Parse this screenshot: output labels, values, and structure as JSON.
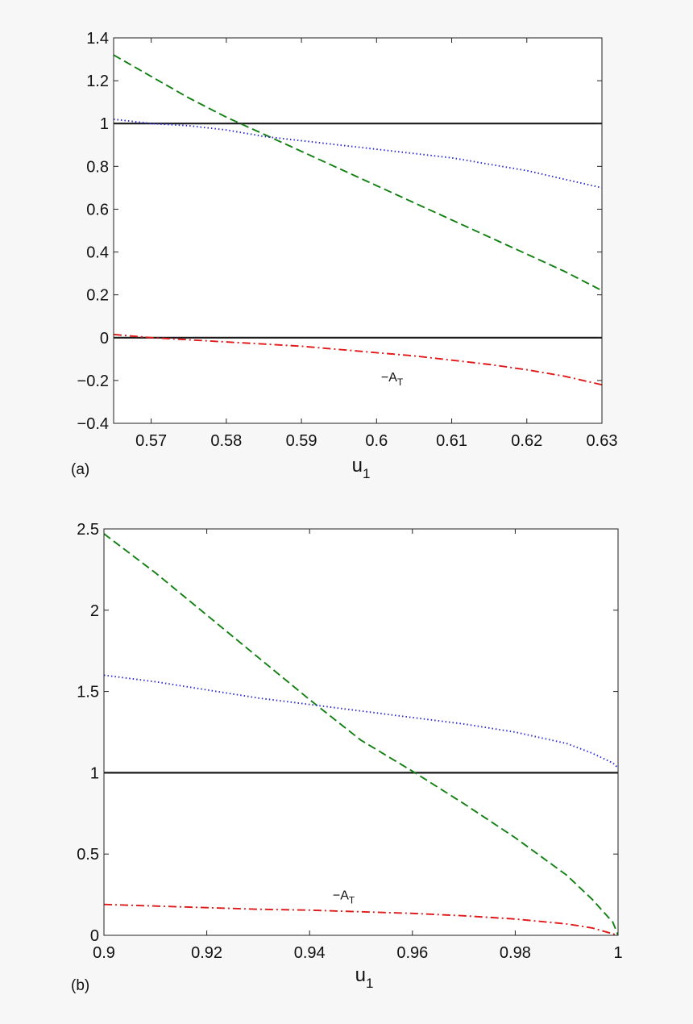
{
  "chart_data": [
    {
      "type": "line",
      "panel_label": "(a)",
      "xlabel": "u",
      "xlabel_sub": "1",
      "ylabel": "",
      "xlim": [
        0.565,
        0.63
      ],
      "ylim": [
        -0.4,
        1.4
      ],
      "xticks": [
        0.57,
        0.58,
        0.59,
        0.6,
        0.61,
        0.62,
        0.63
      ],
      "xtick_labels": [
        "0.57",
        "0.58",
        "0.59",
        "0.6",
        "0.61",
        "0.62",
        "0.63"
      ],
      "yticks": [
        -0.4,
        -0.2,
        0,
        0.2,
        0.4,
        0.6,
        0.8,
        1,
        1.2,
        1.4
      ],
      "ytick_labels": [
        "−0.4",
        "−0.2",
        "0",
        "0.2",
        "0.4",
        "0.6",
        "0.8",
        "1",
        "1.2",
        "1.4"
      ],
      "annotation": {
        "text": "−A",
        "sub": "T",
        "x": 0.6006,
        "y": -0.205
      },
      "series": [
        {
          "style": "solid",
          "color": "#1a1a1a",
          "x": [
            0.565,
            0.63
          ],
          "y": [
            1.0,
            1.0
          ]
        },
        {
          "style": "solid",
          "color": "#1a1a1a",
          "x": [
            0.565,
            0.63
          ],
          "y": [
            0.0,
            0.0
          ]
        },
        {
          "style": "dashed",
          "color": "#118011",
          "x": [
            0.565,
            0.57,
            0.575,
            0.58,
            0.585,
            0.59,
            0.595,
            0.6,
            0.605,
            0.61,
            0.615,
            0.62,
            0.625,
            0.63
          ],
          "y": [
            1.32,
            1.22,
            1.12,
            1.03,
            0.95,
            0.87,
            0.79,
            0.71,
            0.63,
            0.55,
            0.47,
            0.39,
            0.31,
            0.22
          ]
        },
        {
          "style": "dotted",
          "color": "#2b2bd6",
          "x": [
            0.565,
            0.57,
            0.575,
            0.58,
            0.585,
            0.59,
            0.595,
            0.6,
            0.605,
            0.61,
            0.615,
            0.62,
            0.625,
            0.63
          ],
          "y": [
            1.02,
            1.0,
            0.99,
            0.97,
            0.94,
            0.92,
            0.9,
            0.88,
            0.86,
            0.84,
            0.81,
            0.78,
            0.74,
            0.7
          ]
        },
        {
          "style": "dashdot",
          "color": "#e01818",
          "x": [
            0.565,
            0.57,
            0.575,
            0.58,
            0.585,
            0.59,
            0.595,
            0.6,
            0.605,
            0.61,
            0.615,
            0.62,
            0.625,
            0.63
          ],
          "y": [
            0.015,
            0.0,
            -0.01,
            -0.02,
            -0.03,
            -0.04,
            -0.055,
            -0.07,
            -0.085,
            -0.105,
            -0.125,
            -0.15,
            -0.18,
            -0.22
          ]
        }
      ]
    },
    {
      "type": "line",
      "panel_label": "(b)",
      "xlabel": "u",
      "xlabel_sub": "1",
      "ylabel": "",
      "xlim": [
        0.9,
        1.0
      ],
      "ylim": [
        0,
        2.5
      ],
      "xticks": [
        0.9,
        0.92,
        0.94,
        0.96,
        0.98,
        1.0
      ],
      "xtick_labels": [
        "0.9",
        "0.92",
        "0.94",
        "0.96",
        "0.98",
        "1"
      ],
      "yticks": [
        0,
        0.5,
        1,
        1.5,
        2,
        2.5
      ],
      "ytick_labels": [
        "0",
        "0.5",
        "1",
        "1.5",
        "2",
        "2.5"
      ],
      "annotation": {
        "text": "−A",
        "sub": "T",
        "x": 0.9445,
        "y": 0.22
      },
      "series": [
        {
          "style": "solid",
          "color": "#1a1a1a",
          "x": [
            0.9,
            1.0
          ],
          "y": [
            1.0,
            1.0
          ]
        },
        {
          "style": "dashed",
          "color": "#118011",
          "x": [
            0.9,
            0.91,
            0.92,
            0.93,
            0.94,
            0.95,
            0.96,
            0.97,
            0.98,
            0.99,
            0.995,
            0.999,
            1.0
          ],
          "y": [
            2.47,
            2.23,
            1.97,
            1.71,
            1.45,
            1.2,
            1.01,
            0.81,
            0.6,
            0.37,
            0.22,
            0.08,
            0.0
          ]
        },
        {
          "style": "dotted",
          "color": "#2b2bd6",
          "x": [
            0.9,
            0.91,
            0.92,
            0.93,
            0.94,
            0.95,
            0.96,
            0.97,
            0.98,
            0.99,
            0.995,
            0.999,
            1.0
          ],
          "y": [
            1.6,
            1.56,
            1.51,
            1.46,
            1.42,
            1.38,
            1.34,
            1.3,
            1.25,
            1.18,
            1.12,
            1.06,
            1.03
          ]
        },
        {
          "style": "dashdot",
          "color": "#e01818",
          "x": [
            0.9,
            0.91,
            0.92,
            0.93,
            0.94,
            0.95,
            0.96,
            0.97,
            0.98,
            0.99,
            0.995,
            1.0
          ],
          "y": [
            0.19,
            0.18,
            0.17,
            0.16,
            0.155,
            0.145,
            0.135,
            0.12,
            0.1,
            0.07,
            0.045,
            0.0
          ]
        }
      ]
    }
  ]
}
